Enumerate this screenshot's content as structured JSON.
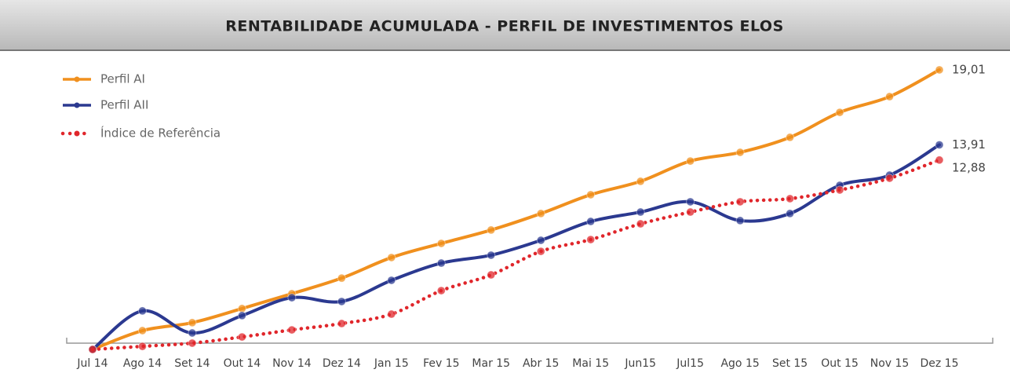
{
  "chart_data": {
    "type": "line",
    "title": "RENTABILIDADE ACUMULADA - PERFIL DE INVESTIMENTOS ELOS",
    "categories": [
      "Jul 14",
      "Ago 14",
      "Set 14",
      "Out 14",
      "Nov 14",
      "Dez 14",
      "Jan 15",
      "Fev 15",
      "Mar 15",
      "Abr 15",
      "Mai 15",
      "Jun15",
      "Jul15",
      "Ago 15",
      "Set 15",
      "Out 15",
      "Nov 15",
      "Dez 15"
    ],
    "series": [
      {
        "name": "Perfil AI",
        "color": "#f0901e",
        "style": "solid",
        "values": [
          0,
          1.28,
          1.82,
          2.78,
          3.79,
          4.85,
          6.25,
          7.21,
          8.12,
          9.24,
          10.52,
          11.43,
          12.81,
          13.4,
          14.42,
          16.12,
          17.19,
          19.01
        ],
        "value_labels": [
          null,
          null,
          null,
          null,
          null,
          null,
          null,
          null,
          null,
          null,
          null,
          null,
          null,
          null,
          null,
          null,
          null,
          "19,01"
        ]
      },
      {
        "name": "Perfil AII",
        "color": "#2b3990",
        "style": "solid",
        "values": [
          0,
          2.62,
          1.12,
          2.3,
          3.52,
          3.26,
          4.7,
          5.87,
          6.41,
          7.42,
          8.7,
          9.34,
          10.04,
          8.76,
          9.24,
          11.16,
          11.85,
          13.91
        ],
        "value_labels": [
          null,
          null,
          null,
          null,
          null,
          null,
          null,
          null,
          null,
          null,
          null,
          null,
          null,
          null,
          null,
          null,
          null,
          "13,91"
        ]
      },
      {
        "name": "Índice de Referência",
        "color": "#e0262b",
        "style": "dotted",
        "values": [
          0,
          0.21,
          0.43,
          0.85,
          1.33,
          1.76,
          2.4,
          4.0,
          5.07,
          6.67,
          7.47,
          8.54,
          9.34,
          10.04,
          10.25,
          10.84,
          11.64,
          12.88
        ],
        "value_labels": [
          null,
          null,
          null,
          null,
          null,
          null,
          null,
          null,
          null,
          null,
          null,
          null,
          null,
          null,
          null,
          null,
          null,
          "12,88"
        ]
      }
    ],
    "ylim": [
      0,
      20
    ],
    "legend": "top-left"
  }
}
